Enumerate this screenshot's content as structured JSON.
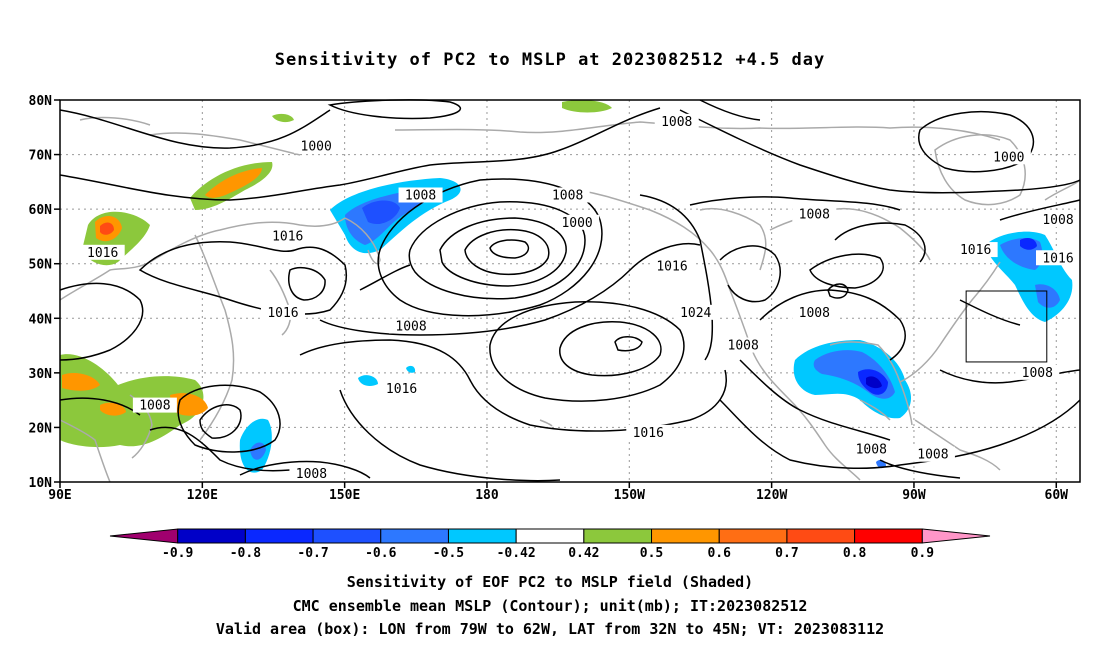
{
  "title": "Sensitivity of PC2 to MSLP at 2023082512 +4.5 day",
  "map": {
    "lon_min": 90,
    "lon_max": 305,
    "lat_min": 10,
    "lat_max": 80,
    "lat_ticks": [
      {
        "value": 80,
        "label": "80N"
      },
      {
        "value": 70,
        "label": "70N"
      },
      {
        "value": 60,
        "label": "60N"
      },
      {
        "value": 50,
        "label": "50N"
      },
      {
        "value": 40,
        "label": "40N"
      },
      {
        "value": 30,
        "label": "30N"
      },
      {
        "value": 20,
        "label": "20N"
      },
      {
        "value": 10,
        "label": "10N"
      }
    ],
    "lon_ticks": [
      {
        "value": 90,
        "label": "90E"
      },
      {
        "value": 120,
        "label": "120E"
      },
      {
        "value": 150,
        "label": "150E"
      },
      {
        "value": 180,
        "label": "180"
      },
      {
        "value": 210,
        "label": "150W"
      },
      {
        "value": 240,
        "label": "120W"
      },
      {
        "value": 270,
        "label": "90W"
      },
      {
        "value": 300,
        "label": "60W"
      }
    ],
    "valid_box": {
      "lon_min": 281,
      "lon_max": 298,
      "lat_min": 32,
      "lat_max": 45
    },
    "contour_labels": [
      {
        "text": "1000",
        "lon": 144,
        "lat": 71.5
      },
      {
        "text": "1008",
        "lon": 166,
        "lat": 62.5
      },
      {
        "text": "1008",
        "lon": 197,
        "lat": 62.5
      },
      {
        "text": "1008",
        "lon": 220,
        "lat": 76
      },
      {
        "text": "1008",
        "lon": 249,
        "lat": 59
      },
      {
        "text": "1000",
        "lon": 199,
        "lat": 57.5
      },
      {
        "text": "1000",
        "lon": 290,
        "lat": 69.5
      },
      {
        "text": "1008",
        "lon": 306,
        "lat": 58
      },
      {
        "text": "1016",
        "lon": 99,
        "lat": 52
      },
      {
        "text": "1016",
        "lon": 138,
        "lat": 55
      },
      {
        "text": "1016",
        "lon": 137,
        "lat": 41
      },
      {
        "text": "1016",
        "lon": 219,
        "lat": 49.5
      },
      {
        "text": "1016",
        "lon": 283,
        "lat": 52.5
      },
      {
        "text": "1016",
        "lon": 302,
        "lat": 51
      },
      {
        "text": "1008",
        "lon": 164,
        "lat": 38.5
      },
      {
        "text": "1024",
        "lon": 224,
        "lat": 41
      },
      {
        "text": "1008",
        "lon": 249,
        "lat": 41
      },
      {
        "text": "1008",
        "lon": 234,
        "lat": 35
      },
      {
        "text": "1008",
        "lon": 296,
        "lat": 30
      },
      {
        "text": "1016",
        "lon": 162,
        "lat": 27
      },
      {
        "text": "1008",
        "lon": 110,
        "lat": 24
      },
      {
        "text": "1016",
        "lon": 214,
        "lat": 19
      },
      {
        "text": "1008",
        "lon": 261,
        "lat": 16
      },
      {
        "text": "1008",
        "lon": 274,
        "lat": 15
      },
      {
        "text": "1008",
        "lon": 143,
        "lat": 11.5
      }
    ]
  },
  "colorbar": {
    "colors": [
      "#a0006e",
      "#0000c8",
      "#0a28ff",
      "#1e50ff",
      "#2d78ff",
      "#00c8ff",
      "#ffffff",
      "#8cc83c",
      "#ff9600",
      "#ff6e14",
      "#ff4b14",
      "#ff0000",
      "#ff96c8"
    ],
    "labels": [
      "-0.9",
      "-0.8",
      "-0.7",
      "-0.6",
      "-0.5",
      "-0.42",
      "0.42",
      "0.5",
      "0.6",
      "0.7",
      "0.8",
      "0.9"
    ]
  },
  "footer": {
    "line1": "Sensitivity of EOF PC2 to MSLP field (Shaded)",
    "line2": "CMC ensemble mean MSLP (Contour); unit(mb); IT:2023082512",
    "line3": "Valid area (box): LON from 79W to 62W, LAT from 32N to 45N; VT: 2023083112"
  }
}
